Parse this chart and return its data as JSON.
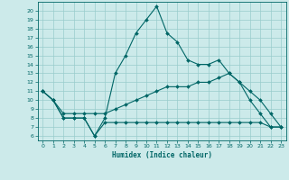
{
  "xlabel": "Humidex (Indice chaleur)",
  "bg_color": "#cceaea",
  "grid_color": "#99cccc",
  "line_color": "#006666",
  "x_ticks": [
    0,
    1,
    2,
    3,
    4,
    5,
    6,
    7,
    8,
    9,
    10,
    11,
    12,
    13,
    14,
    15,
    16,
    17,
    18,
    19,
    20,
    21,
    22,
    23
  ],
  "y_ticks": [
    6,
    7,
    8,
    9,
    10,
    11,
    12,
    13,
    14,
    15,
    16,
    17,
    18,
    19,
    20
  ],
  "ylim": [
    5.5,
    21.0
  ],
  "xlim": [
    -0.5,
    23.5
  ],
  "line1_x": [
    0,
    1,
    2,
    3,
    4,
    5,
    6,
    7,
    8,
    9,
    10,
    11,
    12,
    13,
    14,
    15,
    16,
    17,
    18,
    19,
    20,
    21,
    22,
    23
  ],
  "line1_y": [
    11,
    10,
    8,
    8,
    8,
    6,
    8,
    13,
    15,
    17.5,
    19,
    20.5,
    17.5,
    16.5,
    14.5,
    14,
    14,
    14.5,
    13,
    12,
    10,
    8.5,
    7,
    7
  ],
  "line2_x": [
    0,
    1,
    2,
    3,
    4,
    5,
    6,
    7,
    8,
    9,
    10,
    11,
    12,
    13,
    14,
    15,
    16,
    17,
    18,
    19,
    20,
    21,
    22,
    23
  ],
  "line2_y": [
    11,
    10,
    8.5,
    8.5,
    8.5,
    8.5,
    8.5,
    9,
    9.5,
    10,
    10.5,
    11,
    11.5,
    11.5,
    11.5,
    12,
    12,
    12.5,
    13,
    12,
    11,
    10,
    8.5,
    7
  ],
  "line3_x": [
    0,
    1,
    2,
    3,
    4,
    5,
    6,
    7,
    8,
    9,
    10,
    11,
    12,
    13,
    14,
    15,
    16,
    17,
    18,
    19,
    20,
    21,
    22,
    23
  ],
  "line3_y": [
    11,
    10,
    8,
    8,
    8,
    6,
    7.5,
    7.5,
    7.5,
    7.5,
    7.5,
    7.5,
    7.5,
    7.5,
    7.5,
    7.5,
    7.5,
    7.5,
    7.5,
    7.5,
    7.5,
    7.5,
    7,
    7
  ]
}
